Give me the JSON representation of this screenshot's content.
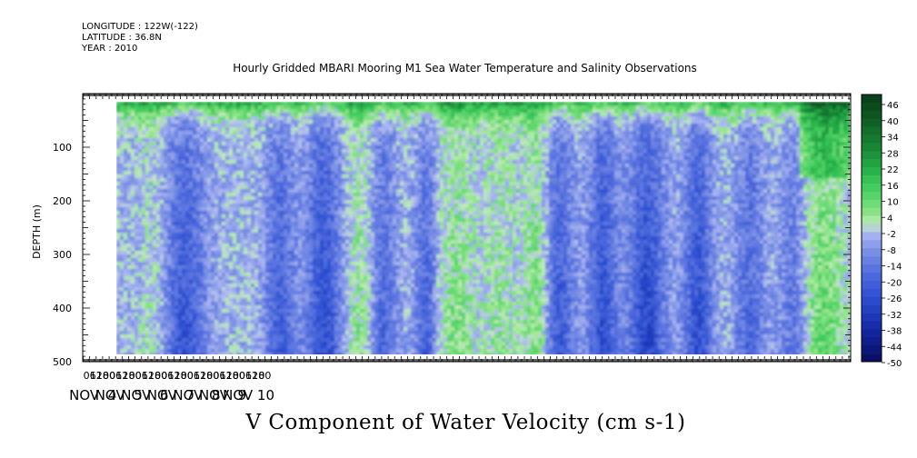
{
  "meta": {
    "longitude": "LONGITUDE : 122W(-122)",
    "latitude": "LATITUDE : 36.8N",
    "year": "YEAR : 2010"
  },
  "title": "Hourly Gridded MBARI Mooring M1 Sea Water Temperature and Salinity Observations",
  "variable_title": "V Component of Water Velocity (cm s-1)",
  "chart_data": {
    "type": "heatmap",
    "title": "Hourly Gridded MBARI Mooring M1 Sea Water Temperature and Salinity Observations",
    "xlabel": "",
    "ylabel": "DEPTH (m)",
    "y_axis": {
      "range": [
        500,
        0
      ],
      "ticks": [
        100,
        200,
        300,
        400,
        500
      ],
      "reversed": true
    },
    "x_axis": {
      "hour_ticks": [
        "06",
        "12",
        "18",
        "00",
        "06",
        "12",
        "18",
        "00",
        "06",
        "12",
        "18",
        "00",
        "06",
        "12",
        "18",
        "00",
        "06",
        "12",
        "18",
        "00",
        "06",
        "12",
        "18",
        "00",
        "06",
        "12",
        "18",
        "00"
      ],
      "day_labels": [
        "NOV  4",
        "NOV  5",
        "NOV  6",
        "NOV  7",
        "NOV  8",
        "NOV  9",
        "NOV 10"
      ],
      "start": "2010-11-04 00:00",
      "end": "2010-11-11 03:00"
    },
    "colorbar": {
      "labels": [
        "46",
        "40",
        "34",
        "28",
        "22",
        "16",
        "10",
        "4",
        "-2",
        "-8",
        "-14",
        "-20",
        "-26",
        "-32",
        "-38",
        "-44",
        "-50"
      ],
      "range": [
        -50,
        49
      ],
      "units": "cm s-1"
    },
    "grid": false,
    "legend_position": "right"
  }
}
